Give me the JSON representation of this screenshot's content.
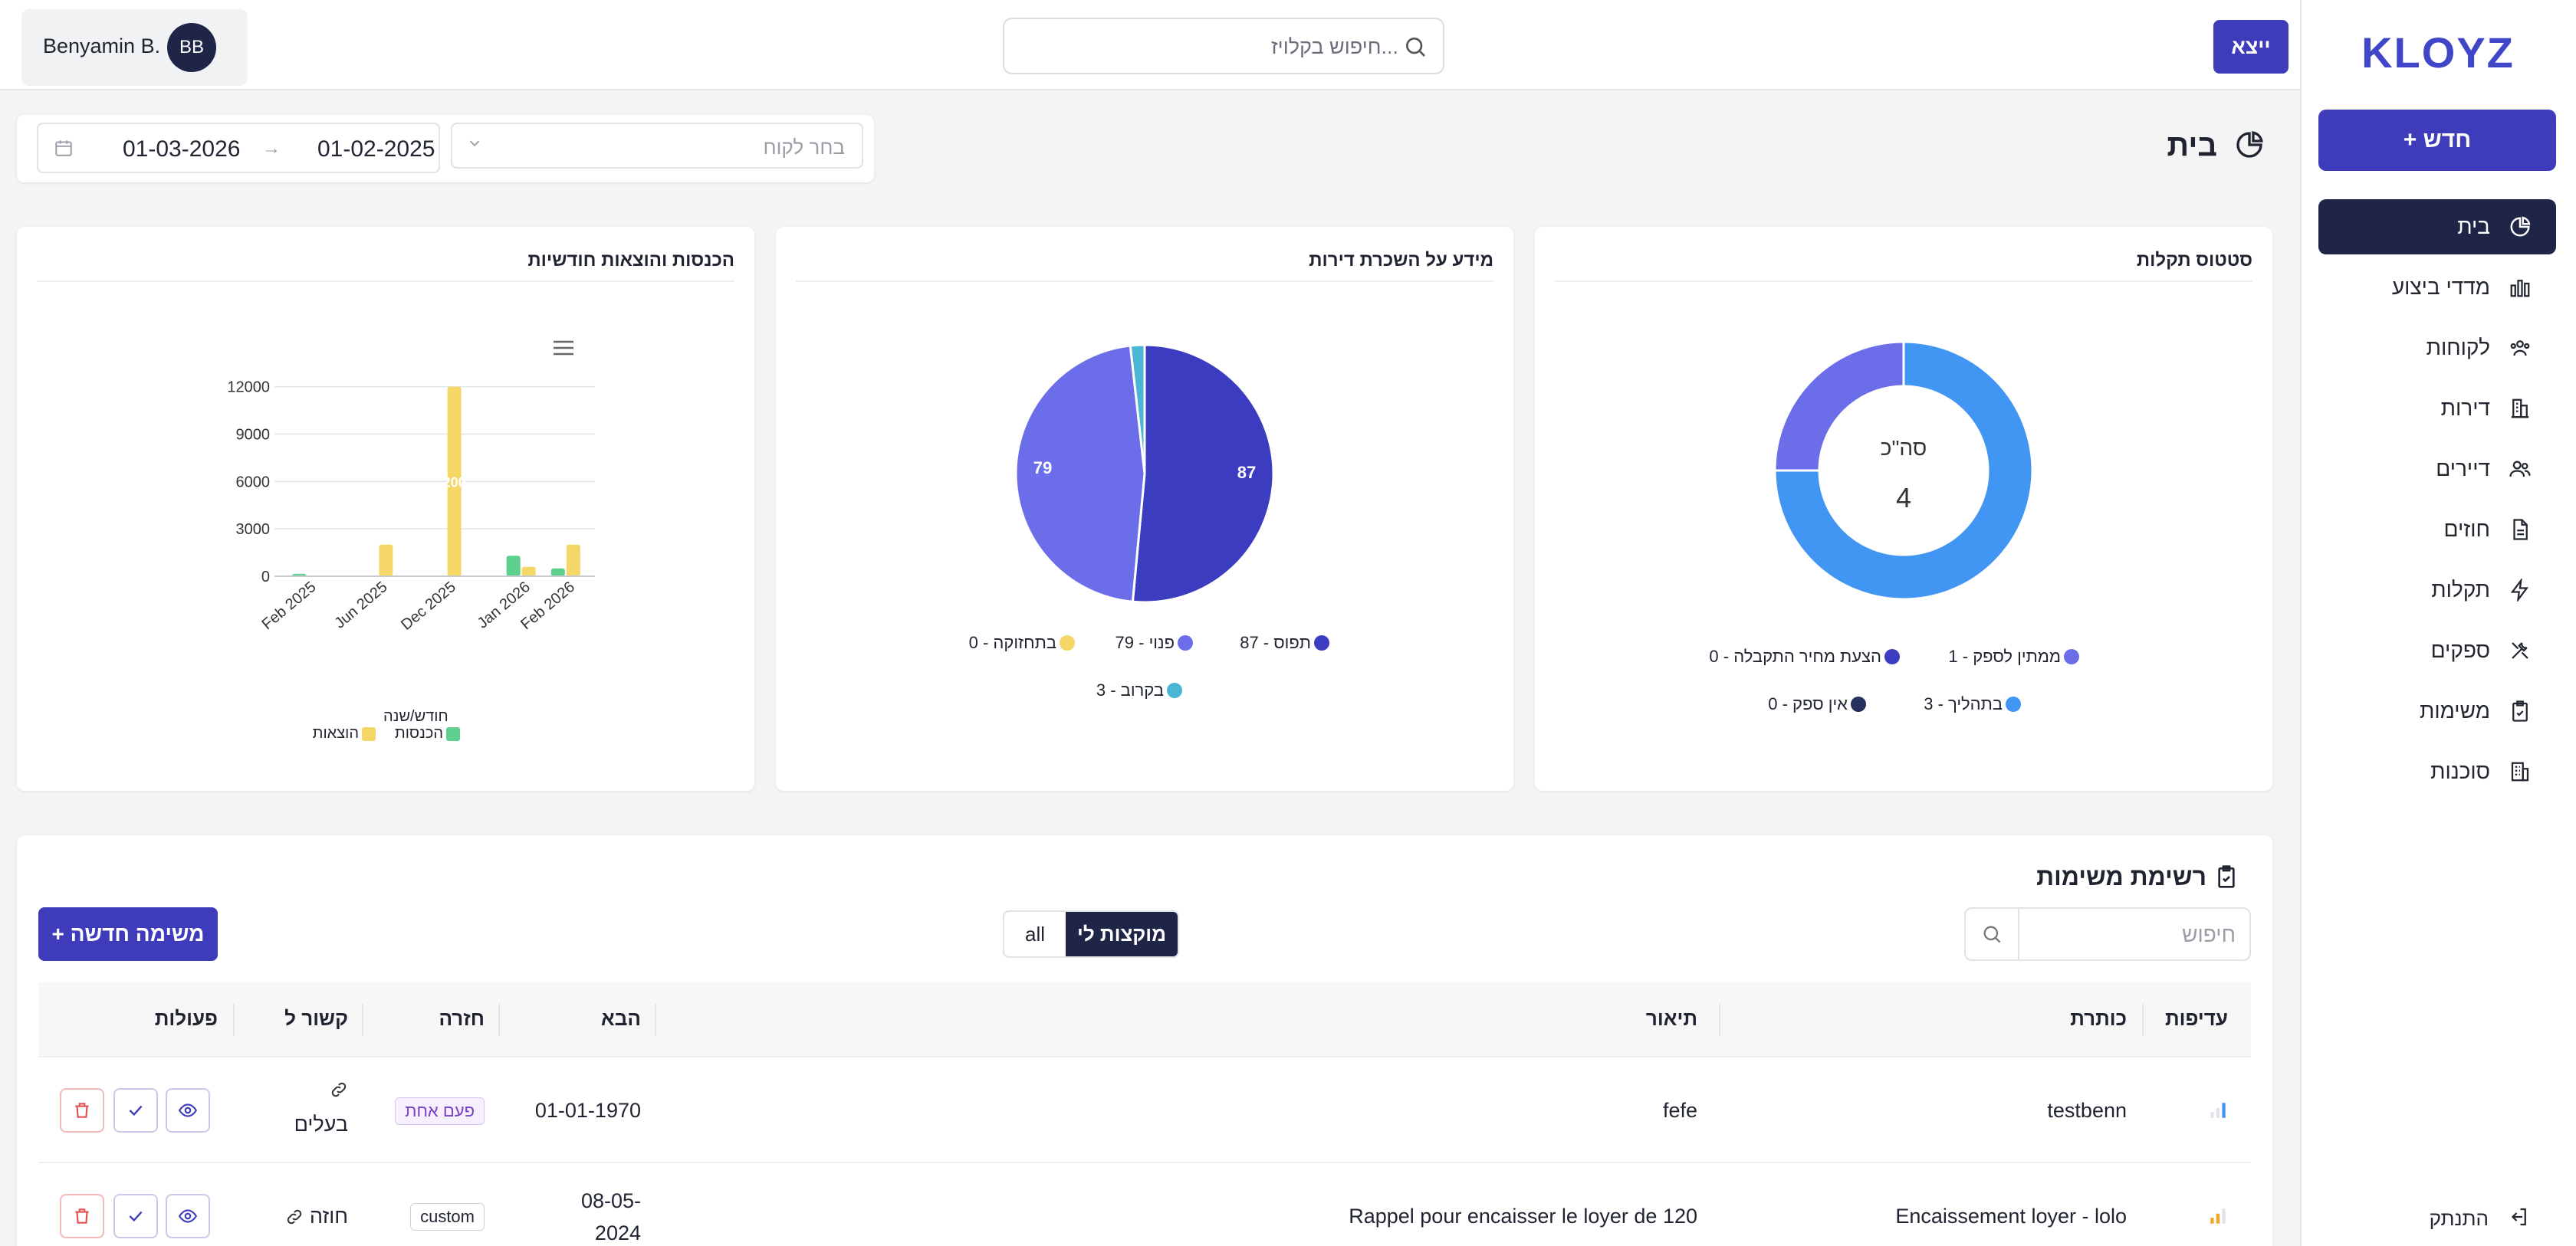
{
  "sidebar": {
    "logo": "KLOYZ",
    "new_button": "+ חדש",
    "items": [
      {
        "label": "בית",
        "icon": "pie-chart-icon"
      },
      {
        "label": "מדדי ביצוע",
        "icon": "bar-chart-icon"
      },
      {
        "label": "לקוחות",
        "icon": "users-icon"
      },
      {
        "label": "דירות",
        "icon": "building-icon"
      },
      {
        "label": "דיירים",
        "icon": "people-icon"
      },
      {
        "label": "חוזים",
        "icon": "document-icon"
      },
      {
        "label": "תקלות",
        "icon": "lightning-icon"
      },
      {
        "label": "ספקים",
        "icon": "tools-icon"
      },
      {
        "label": "משימות",
        "icon": "clipboard-check-icon"
      },
      {
        "label": "סוכנות",
        "icon": "office-building-icon"
      }
    ],
    "logout": "התנתק"
  },
  "topbar": {
    "exit_button": "ייצא",
    "search_placeholder": "חיפוש בקלויז...",
    "user_initials": "BB",
    "user_name": "Benyamin B."
  },
  "page": {
    "title": "בית",
    "client_placeholder": "בחר לקוח",
    "date_from": "01-02-2025",
    "date_arrow": "→",
    "date_to": "01-03-2026"
  },
  "cards": {
    "status": {
      "title": "סטטוס תקלות",
      "center_label": "סה\"כ",
      "center_value": "4",
      "legend": [
        {
          "label": "ממתין לספק - 1",
          "color": "#6b6ee8"
        },
        {
          "label": "הצעת מחיר התקבלה - 0",
          "color": "#3b3cbf"
        },
        {
          "label": "בתהליך - 3",
          "color": "#4195f3"
        },
        {
          "label": "אין ספק - 0",
          "color": "#26305c"
        }
      ]
    },
    "rentals": {
      "title": "מידע על השכרת דירות",
      "label_occupied": "87",
      "label_vacant": "79",
      "legend": [
        {
          "label": "תפוס - 87",
          "color": "#3b3cbf"
        },
        {
          "label": "פנוי - 79",
          "color": "#6b6ee8"
        },
        {
          "label": "בתחזוקה - 0",
          "color": "#f5d767"
        },
        {
          "label": "בקרוב - 3",
          "color": "#49b6d4"
        }
      ]
    },
    "monthly": {
      "title": "הכנסות והוצאות חודשיות",
      "xlabel": "חודש/שנה",
      "bar_label": "200",
      "legend": [
        {
          "label": "הכנסות",
          "color": "#5fcf8e"
        },
        {
          "label": "הוצאות",
          "color": "#f5d767"
        }
      ]
    }
  },
  "chart_data": [
    {
      "type": "pie",
      "title": "סטטוס תקלות",
      "categories": [
        "ממתין לספק",
        "הצעת מחיר התקבלה",
        "בתהליך",
        "אין ספק"
      ],
      "values": [
        1,
        0,
        3,
        0
      ]
    },
    {
      "type": "pie",
      "title": "מידע על השכרת דירות",
      "categories": [
        "תפוס",
        "פנוי",
        "בתחזוקה",
        "בקרוב"
      ],
      "values": [
        87,
        79,
        0,
        3
      ]
    },
    {
      "type": "bar",
      "title": "הכנסות והוצאות חודשיות",
      "xlabel": "חודש/שנה",
      "x": [
        "Feb 2025",
        "Jun 2025",
        "Dec 2025",
        "Jan 2026",
        "Feb 2026"
      ],
      "yticks": [
        0,
        3000,
        6000,
        9000,
        12000
      ],
      "ylim": [
        0,
        13000
      ],
      "series": [
        {
          "name": "הכנסות",
          "values": [
            150,
            0,
            0,
            1300,
            500
          ]
        },
        {
          "name": "הוצאות",
          "values": [
            0,
            2000,
            12000,
            600,
            2000
          ]
        }
      ]
    }
  ],
  "tasks": {
    "title": "רשימת משימות",
    "search_placeholder": "חיפוש",
    "toggle_mine": "מוקצות לי",
    "toggle_all": "all",
    "new_task": "+ משימה חדשה",
    "columns": {
      "priority": "עדיפות",
      "title": "כותרת",
      "description": "תיאור",
      "next": "הבא",
      "repeat": "חזרה",
      "linked": "קשור ל",
      "actions": "פעולות"
    },
    "rows": [
      {
        "title": "testbenn",
        "description": "fefe",
        "next": "01-01-1970",
        "repeat": "פעם אחת",
        "linked": "בעלים"
      },
      {
        "title": "Encaissement loyer - lolo",
        "description": "Rappel pour encaisser le loyer de 120",
        "next_line1": "08-05-",
        "next_line2": "2024",
        "repeat": "custom",
        "linked": "חוזה"
      }
    ]
  }
}
